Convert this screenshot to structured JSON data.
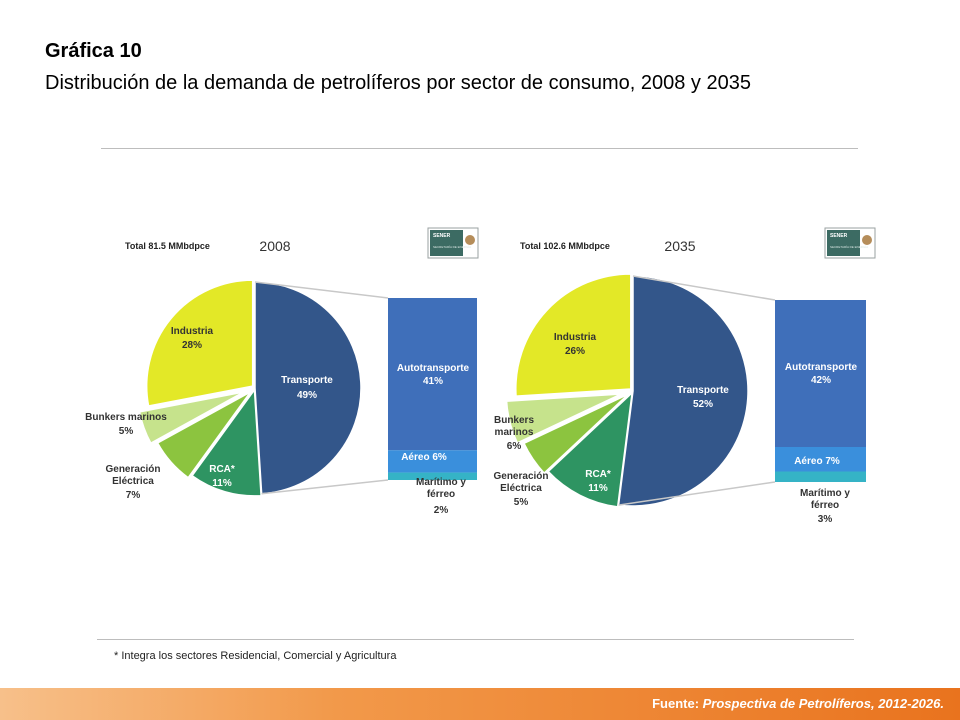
{
  "header": {
    "title": "Gráfica 10",
    "subtitle": "Distribución de la demanda de petrolíferos por sector de consumo, 2008 y 2035"
  },
  "chart_data": [
    {
      "type": "pie",
      "year": "2008",
      "total_label": "Total 81.5 MMbdpce",
      "slices": [
        {
          "label": "Transporte",
          "value": 49,
          "value_label": "49%",
          "color": "#33568a"
        },
        {
          "label": "RCA*",
          "value": 11,
          "value_label": "11%",
          "color": "#2e9462"
        },
        {
          "label": "Generación Eléctrica",
          "value": 7,
          "value_label": "7%",
          "color": "#8cc43f"
        },
        {
          "label": "Bunkers marinos",
          "value": 5,
          "value_label": "5%",
          "color": "#c6e38c"
        },
        {
          "label": "Industria",
          "value": 28,
          "value_label": "28%",
          "color": "#e3e827"
        }
      ],
      "breakdown": [
        {
          "label": "Autotransporte",
          "value": 41,
          "value_label": "41%",
          "color": "#3f6fba"
        },
        {
          "label": "Aéreo",
          "value": 6,
          "value_label": "6%",
          "color": "#3a8fdc"
        },
        {
          "label": "Marítimo y férreo",
          "value": 2,
          "value_label": "2%",
          "color": "#35b3c6"
        }
      ]
    },
    {
      "type": "pie",
      "year": "2035",
      "total_label": "Total 102.6 MMbdpce",
      "slices": [
        {
          "label": "Transporte",
          "value": 52,
          "value_label": "52%",
          "color": "#33568a"
        },
        {
          "label": "RCA*",
          "value": 11,
          "value_label": "11%",
          "color": "#2e9462"
        },
        {
          "label": "Generación Eléctrica",
          "value": 5,
          "value_label": "5%",
          "color": "#8cc43f"
        },
        {
          "label": "Bunkers marinos",
          "value": 6,
          "value_label": "6%",
          "color": "#c6e38c"
        },
        {
          "label": "Industria",
          "value": 26,
          "value_label": "26%",
          "color": "#e3e827"
        }
      ],
      "breakdown": [
        {
          "label": "Autotransporte",
          "value": 42,
          "value_label": "42%",
          "color": "#3f6fba"
        },
        {
          "label": "Aéreo",
          "value": 7,
          "value_label": "7%",
          "color": "#3a8fdc"
        },
        {
          "label": "Marítimo y férreo",
          "value": 3,
          "value_label": "3%",
          "color": "#35b3c6"
        }
      ]
    }
  ],
  "logo": {
    "text": "SENER",
    "subtext": "SECRETARÍA DE ENERGÍA"
  },
  "footnote": "* Integra los sectores Residencial, Comercial y Agricultura",
  "source": {
    "prefix": "Fuente: ",
    "title": "Prospectiva de Petrolíferos, 2012-2026."
  }
}
